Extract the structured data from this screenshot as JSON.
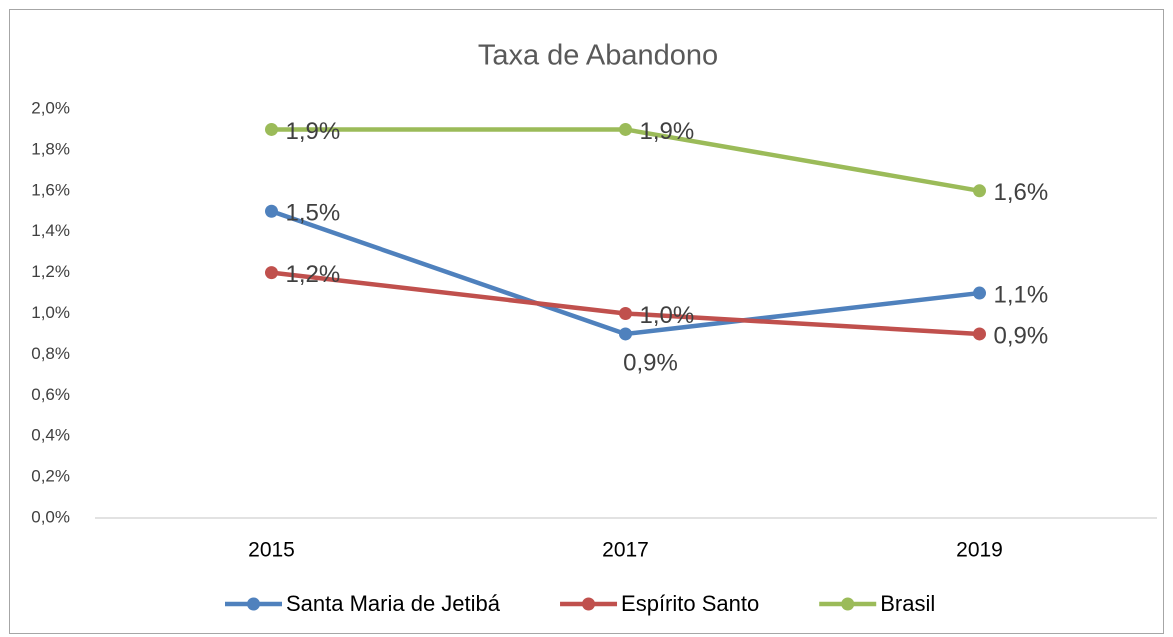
{
  "chart_data": {
    "type": "line",
    "title": "Taxa de Abandono",
    "categories": [
      "2015",
      "2017",
      "2019"
    ],
    "series": [
      {
        "name": "Santa Maria de Jetibá",
        "color": "#4f81bd",
        "values": [
          1.5,
          0.9,
          1.1
        ],
        "value_labels": [
          "1,5%",
          "0,9%",
          "1,1%"
        ]
      },
      {
        "name": "Espírito Santo",
        "color": "#c0504d",
        "values": [
          1.2,
          1.0,
          0.9
        ],
        "value_labels": [
          "1,2%",
          "1,0%",
          "0,9%"
        ]
      },
      {
        "name": "Brasil",
        "color": "#9bbb59",
        "values": [
          1.9,
          1.9,
          1.6
        ],
        "value_labels": [
          "1,9%",
          "1,9%",
          "1,6%"
        ]
      }
    ],
    "ylim": [
      0,
      2.0
    ],
    "yticks": [
      {
        "value": 0,
        "label": "0,0%"
      },
      {
        "value": 0.2,
        "label": "0,2%"
      },
      {
        "value": 0.4,
        "label": "0,4%"
      },
      {
        "value": 0.6,
        "label": "0,6%"
      },
      {
        "value": 0.8,
        "label": "0,8%"
      },
      {
        "value": 1.0,
        "label": "1,0%"
      },
      {
        "value": 1.2,
        "label": "1,2%"
      },
      {
        "value": 1.4,
        "label": "1,4%"
      },
      {
        "value": 1.6,
        "label": "1,6%"
      },
      {
        "value": 1.8,
        "label": "1,8%"
      },
      {
        "value": 2.0,
        "label": "2,0%"
      }
    ],
    "grid": false,
    "legend": "bottom"
  }
}
